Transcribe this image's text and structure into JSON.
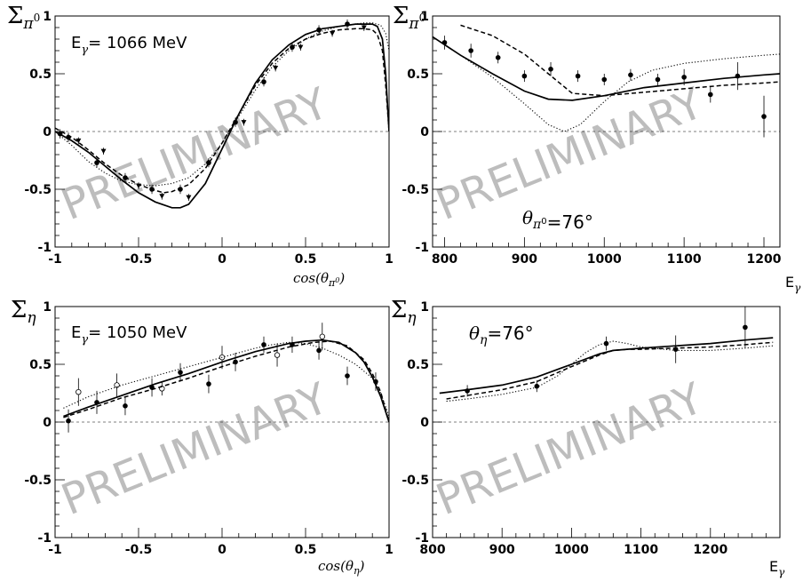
{
  "watermark": "PRELIMINARY",
  "chart_data": [
    {
      "panel": "top-left",
      "type": "scatter",
      "ylabel": "Σπ0",
      "xlabel": "cos(θπ0)",
      "annotation": "E  = 1066 MeV",
      "xlim": [
        -1,
        1
      ],
      "ylim": [
        -1,
        1
      ],
      "xticks": [
        -1,
        -0.5,
        0,
        0.5,
        1
      ],
      "xtick_labels": [
        "-1",
        "-0.5",
        "0",
        "0.5",
        "1"
      ],
      "yticks": [
        -1,
        -0.5,
        0,
        0.5,
        1
      ],
      "ytick_labels": [
        "-1",
        "-0.5",
        "0",
        "0.5",
        "1"
      ],
      "zero_line": true,
      "series": [
        {
          "style": "filled-circle",
          "x": [
            -0.97,
            -0.92,
            -0.75,
            -0.58,
            -0.42,
            -0.25,
            -0.08,
            0.08,
            0.25,
            0.42,
            0.58,
            0.75
          ],
          "y": [
            -0.02,
            -0.05,
            -0.27,
            -0.4,
            -0.5,
            -0.5,
            -0.27,
            0.08,
            0.43,
            0.73,
            0.88,
            0.93
          ],
          "err": [
            0.04,
            0.04,
            0.04,
            0.04,
            0.04,
            0.04,
            0.04,
            0.04,
            0.04,
            0.04,
            0.04,
            0.04
          ]
        },
        {
          "style": "triangle-down",
          "x": [
            -0.86,
            -0.71,
            -0.5,
            -0.36,
            -0.2,
            0.13,
            0.32,
            0.47,
            0.66,
            0.85
          ],
          "y": [
            -0.08,
            -0.17,
            -0.47,
            -0.56,
            -0.57,
            0.08,
            0.55,
            0.73,
            0.85,
            0.9
          ],
          "err": [
            0.03,
            0.03,
            0.03,
            0.03,
            0.03,
            0.03,
            0.03,
            0.03,
            0.03,
            0.03
          ]
        },
        {
          "style": "solid",
          "x": [
            -1,
            -0.9,
            -0.8,
            -0.7,
            -0.6,
            -0.5,
            -0.4,
            -0.3,
            -0.25,
            -0.2,
            -0.1,
            0,
            0.1,
            0.2,
            0.3,
            0.4,
            0.5,
            0.6,
            0.7,
            0.8,
            0.85,
            0.9,
            0.93,
            0.96,
            0.98,
            1
          ],
          "y": [
            0,
            -0.08,
            -0.18,
            -0.3,
            -0.42,
            -0.53,
            -0.61,
            -0.66,
            -0.66,
            -0.63,
            -0.45,
            -0.15,
            0.15,
            0.42,
            0.62,
            0.75,
            0.84,
            0.89,
            0.91,
            0.93,
            0.93,
            0.93,
            0.91,
            0.8,
            0.5,
            0
          ]
        },
        {
          "style": "dashed",
          "x": [
            -1,
            -0.9,
            -0.8,
            -0.7,
            -0.6,
            -0.5,
            -0.4,
            -0.35,
            -0.3,
            -0.2,
            -0.1,
            0,
            0.1,
            0.2,
            0.3,
            0.4,
            0.5,
            0.6,
            0.7,
            0.8,
            0.85,
            0.9,
            0.93,
            0.96,
            0.98,
            1
          ],
          "y": [
            0.03,
            -0.05,
            -0.16,
            -0.28,
            -0.38,
            -0.46,
            -0.51,
            -0.53,
            -0.52,
            -0.46,
            -0.32,
            -0.1,
            0.15,
            0.4,
            0.59,
            0.72,
            0.8,
            0.85,
            0.88,
            0.89,
            0.89,
            0.88,
            0.84,
            0.7,
            0.4,
            0
          ]
        },
        {
          "style": "dotted",
          "x": [
            -1,
            -0.9,
            -0.8,
            -0.7,
            -0.6,
            -0.5,
            -0.4,
            -0.3,
            -0.2,
            -0.1,
            0,
            0.1,
            0.2,
            0.3,
            0.4,
            0.5,
            0.6,
            0.7,
            0.8,
            0.85,
            0.9,
            0.95,
            0.98,
            1
          ],
          "y": [
            0,
            -0.12,
            -0.26,
            -0.36,
            -0.43,
            -0.46,
            -0.47,
            -0.45,
            -0.4,
            -0.28,
            -0.1,
            0.13,
            0.36,
            0.56,
            0.7,
            0.8,
            0.87,
            0.91,
            0.93,
            0.94,
            0.94,
            0.92,
            0.85,
            0.7
          ]
        }
      ]
    },
    {
      "panel": "top-right",
      "type": "scatter",
      "ylabel": "Σπ0",
      "xlabel": "E",
      "annotation": "θπ0=76°",
      "xlim": [
        785,
        1220
      ],
      "ylim": [
        -1,
        1
      ],
      "xticks": [
        800,
        900,
        1000,
        1100,
        1200
      ],
      "xtick_labels": [
        "800",
        "900",
        "1000",
        "1100",
        "1200"
      ],
      "yticks": [
        -1,
        -0.5,
        0,
        0.5,
        1
      ],
      "ytick_labels": [
        "-1",
        "-0.5",
        "0",
        "0.5",
        "1"
      ],
      "zero_line": true,
      "series": [
        {
          "style": "filled-circle",
          "x": [
            800,
            833,
            867,
            900,
            933,
            967,
            1000,
            1033,
            1067,
            1100,
            1133,
            1167,
            1200
          ],
          "y": [
            0.77,
            0.7,
            0.64,
            0.48,
            0.54,
            0.48,
            0.45,
            0.49,
            0.45,
            0.47,
            0.32,
            0.48,
            0.13
          ],
          "err": [
            0.06,
            0.06,
            0.05,
            0.05,
            0.06,
            0.05,
            0.05,
            0.05,
            0.05,
            0.07,
            0.07,
            0.12,
            0.18
          ]
        },
        {
          "style": "solid",
          "x": [
            785,
            820,
            860,
            900,
            930,
            960,
            1000,
            1050,
            1100,
            1150,
            1200,
            1220
          ],
          "y": [
            0.82,
            0.66,
            0.5,
            0.35,
            0.28,
            0.27,
            0.31,
            0.38,
            0.42,
            0.46,
            0.49,
            0.5
          ]
        },
        {
          "style": "dashed",
          "x": [
            820,
            860,
            900,
            930,
            960,
            1000,
            1050,
            1100,
            1150,
            1200,
            1220
          ],
          "y": [
            0.92,
            0.83,
            0.67,
            0.5,
            0.33,
            0.31,
            0.34,
            0.37,
            0.4,
            0.42,
            0.43
          ]
        },
        {
          "style": "dotted",
          "x": [
            820,
            860,
            900,
            930,
            950,
            970,
            1000,
            1030,
            1060,
            1100,
            1150,
            1200,
            1220
          ],
          "y": [
            0.66,
            0.47,
            0.24,
            0.06,
            0.0,
            0.06,
            0.26,
            0.43,
            0.53,
            0.59,
            0.63,
            0.66,
            0.67
          ]
        }
      ]
    },
    {
      "panel": "bottom-left",
      "type": "scatter",
      "ylabel": "Ση",
      "xlabel": "cos(θη)",
      "annotation": "E  = 1050 MeV",
      "xlim": [
        -1,
        1
      ],
      "ylim": [
        -1,
        1
      ],
      "xticks": [
        -1,
        -0.5,
        0,
        0.5,
        1
      ],
      "xtick_labels": [
        "-1",
        "-0.5",
        "0",
        "0.5",
        "1"
      ],
      "yticks": [
        -1,
        -0.5,
        0,
        0.5,
        1
      ],
      "ytick_labels": [
        "-1",
        "-0.5",
        "0",
        "0.5",
        "1"
      ],
      "zero_line": true,
      "series": [
        {
          "style": "filled-circle",
          "x": [
            -0.92,
            -0.75,
            -0.58,
            -0.42,
            -0.25,
            -0.08,
            0.08,
            0.25,
            0.42,
            0.58,
            0.75,
            0.92
          ],
          "y": [
            0.01,
            0.17,
            0.14,
            0.3,
            0.43,
            0.33,
            0.52,
            0.67,
            0.67,
            0.62,
            0.4,
            0.35
          ],
          "err": [
            0.1,
            0.1,
            0.08,
            0.08,
            0.08,
            0.08,
            0.08,
            0.07,
            0.07,
            0.08,
            0.08,
            0.08
          ]
        },
        {
          "style": "open-circle",
          "x": [
            -0.86,
            -0.63,
            -0.36,
            0.0,
            0.33,
            0.6
          ],
          "y": [
            0.26,
            0.32,
            0.29,
            0.56,
            0.58,
            0.74
          ],
          "err": [
            0.12,
            0.1,
            0.06,
            0.1,
            0.1,
            0.12
          ]
        },
        {
          "style": "solid",
          "x": [
            -0.95,
            -0.8,
            -0.6,
            -0.4,
            -0.2,
            0,
            0.2,
            0.4,
            0.5,
            0.6,
            0.7,
            0.8,
            0.85,
            0.9,
            0.95,
            1
          ],
          "y": [
            0.05,
            0.13,
            0.23,
            0.33,
            0.42,
            0.52,
            0.61,
            0.68,
            0.7,
            0.71,
            0.69,
            0.6,
            0.52,
            0.39,
            0.22,
            0
          ]
        },
        {
          "style": "dashed",
          "x": [
            -0.95,
            -0.8,
            -0.6,
            -0.4,
            -0.2,
            0,
            0.2,
            0.4,
            0.55,
            0.65,
            0.75,
            0.85,
            0.9,
            0.95,
            1
          ],
          "y": [
            0.04,
            0.11,
            0.21,
            0.29,
            0.38,
            0.48,
            0.57,
            0.65,
            0.69,
            0.7,
            0.66,
            0.54,
            0.42,
            0.26,
            0
          ]
        },
        {
          "style": "dotted",
          "x": [
            -0.95,
            -0.8,
            -0.6,
            -0.4,
            -0.2,
            0,
            0.2,
            0.3,
            0.4,
            0.5,
            0.6,
            0.7,
            0.8,
            0.9,
            0.95,
            1
          ],
          "y": [
            0.12,
            0.22,
            0.32,
            0.4,
            0.48,
            0.56,
            0.64,
            0.67,
            0.69,
            0.68,
            0.64,
            0.58,
            0.5,
            0.38,
            0.25,
            0.05
          ]
        }
      ]
    },
    {
      "panel": "bottom-right",
      "type": "scatter",
      "ylabel": "Ση",
      "xlabel": "E",
      "annotation": "θη=76°",
      "xlim": [
        800,
        1300
      ],
      "ylim": [
        -1,
        1
      ],
      "xticks": [
        800,
        900,
        1000,
        1100,
        1200
      ],
      "xtick_labels": [
        "800",
        "900",
        "1000",
        "1100",
        "1200"
      ],
      "yticks": [
        -1,
        -0.5,
        0,
        0.5,
        1
      ],
      "ytick_labels": [
        "-1",
        "-0.5",
        "0",
        "0.5",
        "1"
      ],
      "zero_line": true,
      "series": [
        {
          "style": "filled-circle",
          "x": [
            850,
            950,
            1050,
            1150,
            1250
          ],
          "y": [
            0.27,
            0.31,
            0.68,
            0.63,
            0.82
          ],
          "err": [
            0.05,
            0.05,
            0.06,
            0.12,
            0.18
          ]
        },
        {
          "style": "solid",
          "x": [
            810,
            850,
            900,
            950,
            1000,
            1040,
            1060,
            1080,
            1100,
            1150,
            1200,
            1250,
            1290
          ],
          "y": [
            0.25,
            0.28,
            0.32,
            0.39,
            0.5,
            0.59,
            0.62,
            0.63,
            0.64,
            0.66,
            0.68,
            0.71,
            0.73
          ]
        },
        {
          "style": "dashed",
          "x": [
            820,
            850,
            900,
            950,
            1000,
            1040,
            1060,
            1080,
            1100,
            1150,
            1200,
            1250,
            1290
          ],
          "y": [
            0.2,
            0.23,
            0.28,
            0.35,
            0.48,
            0.58,
            0.62,
            0.63,
            0.63,
            0.64,
            0.65,
            0.67,
            0.69
          ]
        },
        {
          "style": "dotted",
          "x": [
            820,
            850,
            900,
            950,
            980,
            1000,
            1020,
            1040,
            1060,
            1080,
            1100,
            1150,
            1200,
            1250,
            1290
          ],
          "y": [
            0.18,
            0.2,
            0.24,
            0.3,
            0.4,
            0.5,
            0.6,
            0.67,
            0.7,
            0.68,
            0.65,
            0.62,
            0.62,
            0.64,
            0.66
          ]
        }
      ]
    }
  ]
}
